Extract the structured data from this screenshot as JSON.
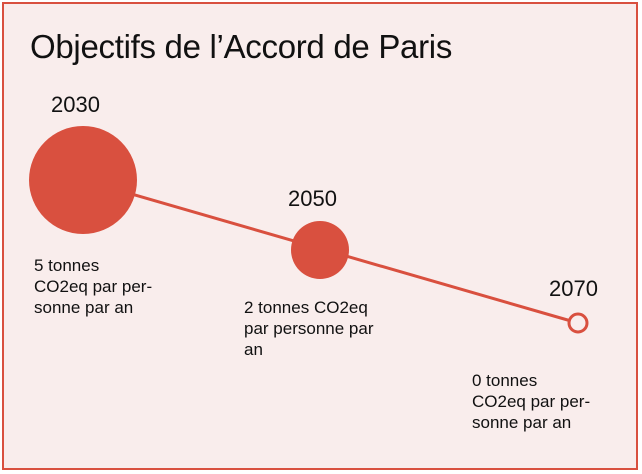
{
  "title": "Objectifs de l’Accord de Paris",
  "colors": {
    "accent": "#d9503f",
    "background": "#f9edec",
    "text": "#111111"
  },
  "milestones": [
    {
      "year": "2030",
      "description": "5 tonnes\nCO2eq par per-\nsonne par an",
      "tonnes": 5,
      "marker": "filled"
    },
    {
      "year": "2050",
      "description": "2 tonnes CO2eq\npar personne par\nan",
      "tonnes": 2,
      "marker": "filled"
    },
    {
      "year": "2070",
      "description": "0 tonnes\nCO2eq par per-\nsonne par an",
      "tonnes": 0,
      "marker": "hollow"
    }
  ]
}
